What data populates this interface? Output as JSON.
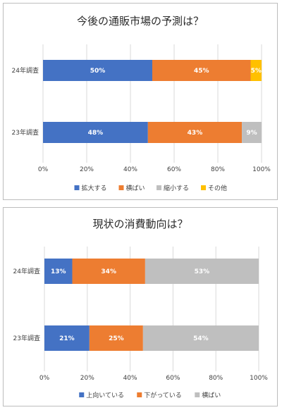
{
  "chart_data": [
    {
      "type": "bar",
      "orientation": "horizontal",
      "stacked": "100%",
      "title": "今後の通販市場の予測は？",
      "categories": [
        "24年調査",
        "23年調査"
      ],
      "series": [
        {
          "name": "拡大する",
          "values": [
            50,
            48
          ],
          "labels": [
            "50%",
            "48%"
          ],
          "color": "#4472c4",
          "label_color": "#ffffff"
        },
        {
          "name": "横ばい",
          "values": [
            45,
            43
          ],
          "labels": [
            "45%",
            "43%"
          ],
          "color": "#ed7d31",
          "label_color": "#ffffff"
        },
        {
          "name": "縮小する",
          "values": [
            0,
            9
          ],
          "labels": [
            "",
            "9%"
          ],
          "color": "#bfbfbf",
          "label_color": "#ffffff"
        },
        {
          "name": "その他",
          "values": [
            5,
            0
          ],
          "labels": [
            "5%",
            ""
          ],
          "color": "#ffc000",
          "label_color": "#ffffff"
        }
      ],
      "xlim": [
        0,
        100
      ],
      "xticks": [
        "0%",
        "20%",
        "40%",
        "60%",
        "80%",
        "100%"
      ],
      "legend_position": "bottom",
      "grid": true
    },
    {
      "type": "bar",
      "orientation": "horizontal",
      "stacked": "100%",
      "title": "現状の消費動向は？",
      "categories": [
        "24年調査",
        "23年調査"
      ],
      "series": [
        {
          "name": "上向いている",
          "values": [
            13,
            21
          ],
          "labels": [
            "13%",
            "21%"
          ],
          "color": "#4472c4",
          "label_color": "#ffffff"
        },
        {
          "name": "下がっている",
          "values": [
            34,
            25
          ],
          "labels": [
            "34%",
            "25%"
          ],
          "color": "#ed7d31",
          "label_color": "#ffffff"
        },
        {
          "name": "横ばい",
          "values": [
            53,
            54
          ],
          "labels": [
            "53%",
            "54%"
          ],
          "color": "#bfbfbf",
          "label_color": "#ffffff"
        }
      ],
      "xlim": [
        0,
        100
      ],
      "xticks": [
        "0%",
        "20%",
        "40%",
        "60%",
        "80%",
        "100%"
      ],
      "legend_position": "bottom",
      "grid": true
    }
  ]
}
